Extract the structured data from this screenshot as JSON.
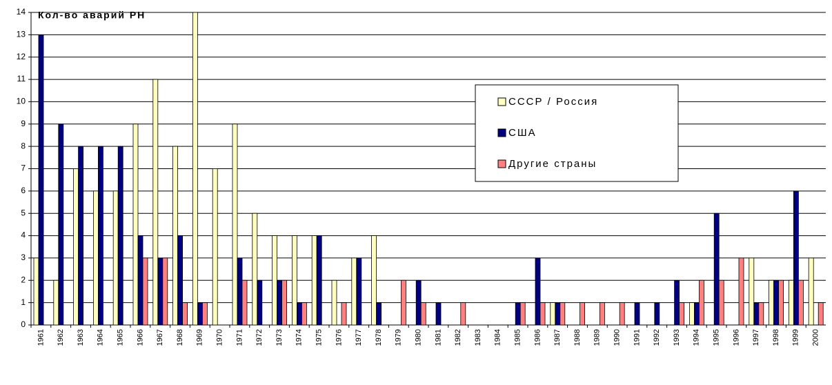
{
  "chart_data": {
    "type": "bar",
    "y_label": "Кол-во аварий РН",
    "categories": [
      "1961",
      "1962",
      "1963",
      "1964",
      "1965",
      "1966",
      "1967",
      "1968",
      "1969",
      "1970",
      "1971",
      "1972",
      "1973",
      "1974",
      "1975",
      "1976",
      "1977",
      "1978",
      "1979",
      "1980",
      "1981",
      "1982",
      "1983",
      "1984",
      "1985",
      "1986",
      "1987",
      "1988",
      "1989",
      "1990",
      "1991",
      "1992",
      "1993",
      "1994",
      "1995",
      "1996",
      "1997",
      "1998",
      "1999",
      "2000"
    ],
    "series": [
      {
        "name": "СССР / Россия",
        "color": "#ffffc0",
        "values": [
          3,
          2,
          7,
          6,
          6,
          9,
          11,
          8,
          14,
          7,
          9,
          5,
          4,
          4,
          4,
          2,
          3,
          4,
          0,
          0,
          0,
          0,
          0,
          0,
          0,
          0,
          1,
          0,
          0,
          0,
          0,
          0,
          0,
          1,
          0,
          0,
          3,
          2,
          2,
          3
        ]
      },
      {
        "name": "США",
        "color": "#000080",
        "values": [
          13,
          9,
          8,
          8,
          8,
          4,
          3,
          4,
          1,
          0,
          3,
          2,
          2,
          1,
          4,
          0,
          3,
          1,
          0,
          2,
          1,
          0,
          0,
          0,
          1,
          3,
          1,
          0,
          0,
          0,
          1,
          1,
          2,
          1,
          5,
          0,
          1,
          2,
          6,
          0
        ]
      },
      {
        "name": "Другие страны",
        "color": "#ff8080",
        "values": [
          0,
          0,
          0,
          0,
          0,
          3,
          3,
          1,
          1,
          0,
          2,
          0,
          2,
          1,
          0,
          1,
          0,
          0,
          2,
          1,
          0,
          1,
          0,
          0,
          1,
          1,
          1,
          1,
          1,
          1,
          0,
          0,
          1,
          2,
          2,
          3,
          1,
          2,
          2,
          1
        ]
      }
    ],
    "ylim": [
      0,
      14
    ],
    "yticks": [
      0,
      1,
      2,
      3,
      4,
      5,
      6,
      7,
      8,
      9,
      10,
      11,
      12,
      13,
      14
    ],
    "grid": true
  }
}
